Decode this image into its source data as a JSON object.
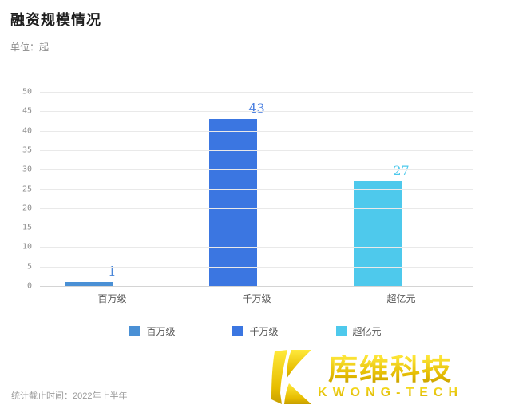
{
  "title": "融资规模情况",
  "subtitle": "单位：起",
  "chart_data": {
    "type": "bar",
    "title": "融资规模情况",
    "unit_label": "单位：起",
    "categories": [
      "百万级",
      "千万级",
      "超亿元"
    ],
    "values": [
      1,
      43,
      27
    ],
    "bar_colors": [
      "#4a90d5",
      "#3b76e1",
      "#4ec9ec"
    ],
    "value_label_colors": [
      "#4a86d8",
      "#4a7fe0",
      "#4ec9ec"
    ],
    "xlabel": "",
    "ylabel": "",
    "ylim": [
      0,
      50
    ],
    "y_ticks": [
      0,
      5,
      10,
      15,
      20,
      25,
      30,
      35,
      40,
      45,
      50
    ],
    "grid": true,
    "legend_position": "bottom",
    "legend": [
      "百万级",
      "千万级",
      "超亿元"
    ]
  },
  "footer": {
    "note": "统计截止时间：2022年上半年"
  },
  "logo": {
    "name_cn": "库维科技",
    "name_en": "KWONG-TECH",
    "gold_color": "#e8c400",
    "icon": "k-logo-icon"
  }
}
